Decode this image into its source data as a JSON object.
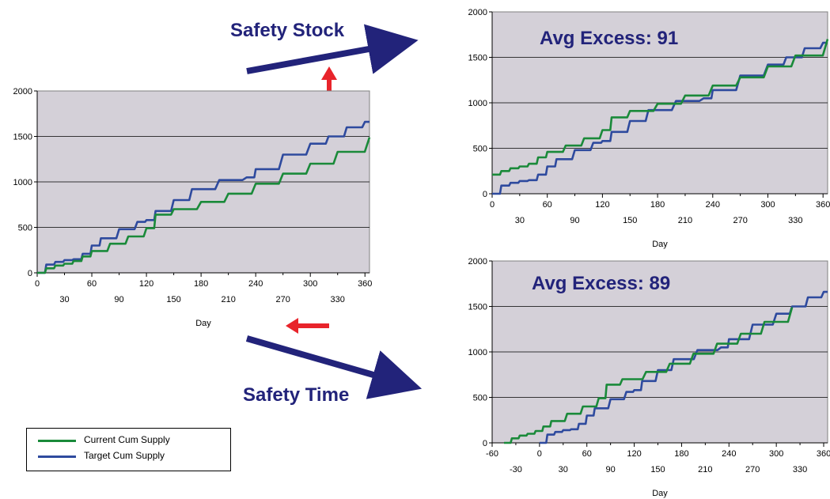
{
  "colors": {
    "plot_bg": "#d4d0d8",
    "current": "#1a8a3a",
    "target": "#2e4a9e",
    "navy_arrow": "#22237a",
    "red_arrow": "#e8242b"
  },
  "annotations": {
    "safety_stock": "Safety Stock",
    "safety_time": "Safety Time"
  },
  "legend": {
    "current_label": "Current Cum Supply",
    "target_label": "Target Cum Supply"
  },
  "chart_data": [
    {
      "type": "line",
      "title": "",
      "xlabel": "Day",
      "ylabel": "",
      "xlim": [
        0,
        365
      ],
      "ylim": [
        0,
        2000
      ],
      "x_ticks_upper": [
        0,
        60,
        120,
        180,
        240,
        300,
        360
      ],
      "x_ticks_lower": [
        30,
        90,
        150,
        210,
        270,
        330
      ],
      "y_ticks": [
        0,
        500,
        1000,
        1500,
        2000
      ],
      "grid": "horizontal",
      "series": [
        {
          "name": "Current Cum Supply",
          "x": [
            0,
            10,
            20,
            30,
            40,
            50,
            60,
            80,
            100,
            120,
            130,
            150,
            180,
            210,
            240,
            270,
            300,
            330,
            365
          ],
          "y": [
            0,
            50,
            80,
            100,
            130,
            180,
            240,
            320,
            400,
            490,
            640,
            700,
            780,
            870,
            980,
            1090,
            1200,
            1330,
            1490
          ]
        },
        {
          "name": "Target Cum Supply",
          "x": [
            0,
            10,
            20,
            30,
            40,
            50,
            60,
            70,
            90,
            110,
            120,
            130,
            150,
            170,
            200,
            230,
            240,
            270,
            300,
            320,
            340,
            360,
            365
          ],
          "y": [
            0,
            90,
            120,
            140,
            150,
            210,
            300,
            380,
            480,
            560,
            580,
            680,
            800,
            920,
            1020,
            1050,
            1140,
            1300,
            1420,
            1500,
            1600,
            1660,
            1660
          ]
        }
      ]
    },
    {
      "type": "line",
      "title": "Avg Excess: 91",
      "xlabel": "Day",
      "ylabel": "",
      "xlim": [
        0,
        365
      ],
      "ylim": [
        0,
        2000
      ],
      "x_ticks_upper": [
        0,
        60,
        120,
        180,
        240,
        300,
        360
      ],
      "x_ticks_lower": [
        30,
        90,
        150,
        210,
        270,
        330
      ],
      "y_ticks": [
        0,
        500,
        1000,
        1500,
        2000
      ],
      "grid": "horizontal",
      "series": [
        {
          "name": "Current Cum Supply",
          "x": [
            0,
            10,
            20,
            30,
            40,
            50,
            60,
            80,
            100,
            120,
            130,
            150,
            180,
            210,
            240,
            270,
            300,
            330,
            365
          ],
          "y": [
            210,
            250,
            280,
            300,
            330,
            400,
            460,
            530,
            610,
            700,
            840,
            910,
            990,
            1080,
            1190,
            1280,
            1400,
            1520,
            1700
          ]
        },
        {
          "name": "Target Cum Supply",
          "x": [
            0,
            10,
            20,
            30,
            40,
            50,
            60,
            70,
            90,
            110,
            120,
            130,
            150,
            170,
            200,
            230,
            240,
            270,
            300,
            320,
            340,
            360,
            365
          ],
          "y": [
            0,
            90,
            120,
            140,
            150,
            210,
            300,
            380,
            480,
            560,
            580,
            680,
            800,
            920,
            1020,
            1050,
            1140,
            1300,
            1420,
            1500,
            1600,
            1660,
            1660
          ]
        }
      ]
    },
    {
      "type": "line",
      "title": "Avg Excess: 89",
      "xlabel": "Day",
      "ylabel": "",
      "xlim": [
        -60,
        365
      ],
      "ylim": [
        0,
        2000
      ],
      "x_ticks_upper": [
        -60,
        0,
        60,
        120,
        180,
        240,
        300,
        360
      ],
      "x_ticks_lower": [
        -30,
        30,
        90,
        150,
        210,
        270,
        330
      ],
      "y_ticks": [
        0,
        500,
        1000,
        1500,
        2000
      ],
      "grid": "horizontal",
      "series": [
        {
          "name": "Current Cum Supply",
          "x": [
            -45,
            -35,
            -25,
            -15,
            -5,
            5,
            15,
            35,
            55,
            75,
            85,
            105,
            135,
            165,
            195,
            225,
            255,
            285,
            320
          ],
          "y": [
            0,
            50,
            80,
            100,
            130,
            180,
            240,
            320,
            400,
            490,
            640,
            700,
            780,
            870,
            980,
            1090,
            1200,
            1330,
            1490
          ]
        },
        {
          "name": "Target Cum Supply",
          "x": [
            0,
            10,
            20,
            30,
            40,
            50,
            60,
            70,
            90,
            110,
            120,
            130,
            150,
            170,
            200,
            230,
            240,
            270,
            300,
            320,
            340,
            360,
            365
          ],
          "y": [
            0,
            90,
            120,
            140,
            150,
            210,
            300,
            380,
            480,
            560,
            580,
            680,
            800,
            920,
            1020,
            1050,
            1140,
            1300,
            1420,
            1500,
            1600,
            1660,
            1660
          ]
        }
      ]
    }
  ]
}
